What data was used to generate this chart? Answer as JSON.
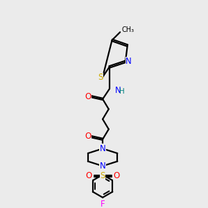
{
  "background_color": "#ebebeb",
  "C": "#000000",
  "N": "#0000ff",
  "O": "#ff0000",
  "S": "#ccaa00",
  "F": "#ff00ff",
  "H": "#008080",
  "lw": 1.6,
  "fs": 8.5
}
